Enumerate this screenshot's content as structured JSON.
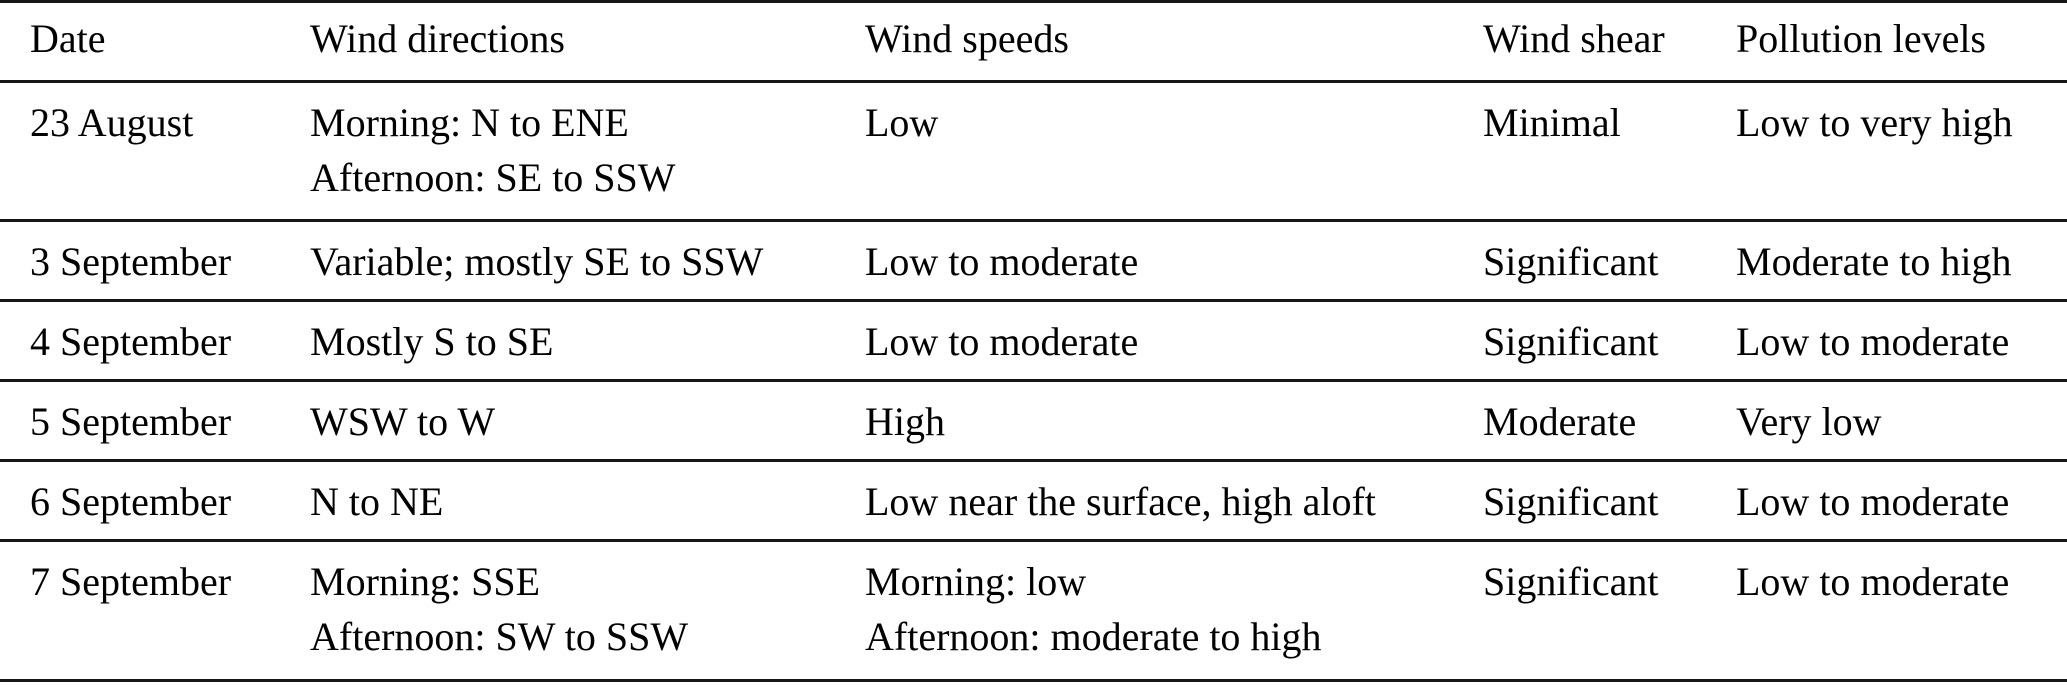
{
  "table": {
    "columns": [
      {
        "label": "Date"
      },
      {
        "label": "Wind directions"
      },
      {
        "label": "Wind speeds"
      },
      {
        "label": "Wind shear"
      },
      {
        "label": "Pollution levels"
      }
    ],
    "rows": [
      {
        "date": "23 August",
        "wind_directions": "Morning: N to ENE\nAfternoon: SE to SSW",
        "wind_speeds": "Low",
        "wind_shear": "Minimal",
        "pollution_levels": "Low to very high"
      },
      {
        "date": "3 September",
        "wind_directions": "Variable; mostly SE to SSW",
        "wind_speeds": "Low to moderate",
        "wind_shear": "Significant",
        "pollution_levels": "Moderate to high"
      },
      {
        "date": "4 September",
        "wind_directions": "Mostly S to SE",
        "wind_speeds": "Low to moderate",
        "wind_shear": "Significant",
        "pollution_levels": "Low to moderate"
      },
      {
        "date": "5 September",
        "wind_directions": "WSW to W",
        "wind_speeds": "High",
        "wind_shear": "Moderate",
        "pollution_levels": "Very low"
      },
      {
        "date": "6 September",
        "wind_directions": "N to NE",
        "wind_speeds": "Low near the surface, high aloft",
        "wind_shear": "Significant",
        "pollution_levels": "Low to moderate"
      },
      {
        "date": "7 September",
        "wind_directions": "Morning: SSE\nAfternoon: SW to SSW",
        "wind_speeds": "Morning: low\nAfternoon: moderate to high",
        "wind_shear": "Significant",
        "pollution_levels": "Low to moderate"
      }
    ]
  },
  "colors": {
    "text": "#000000",
    "rule": "#161616",
    "background": "#ffffff"
  }
}
